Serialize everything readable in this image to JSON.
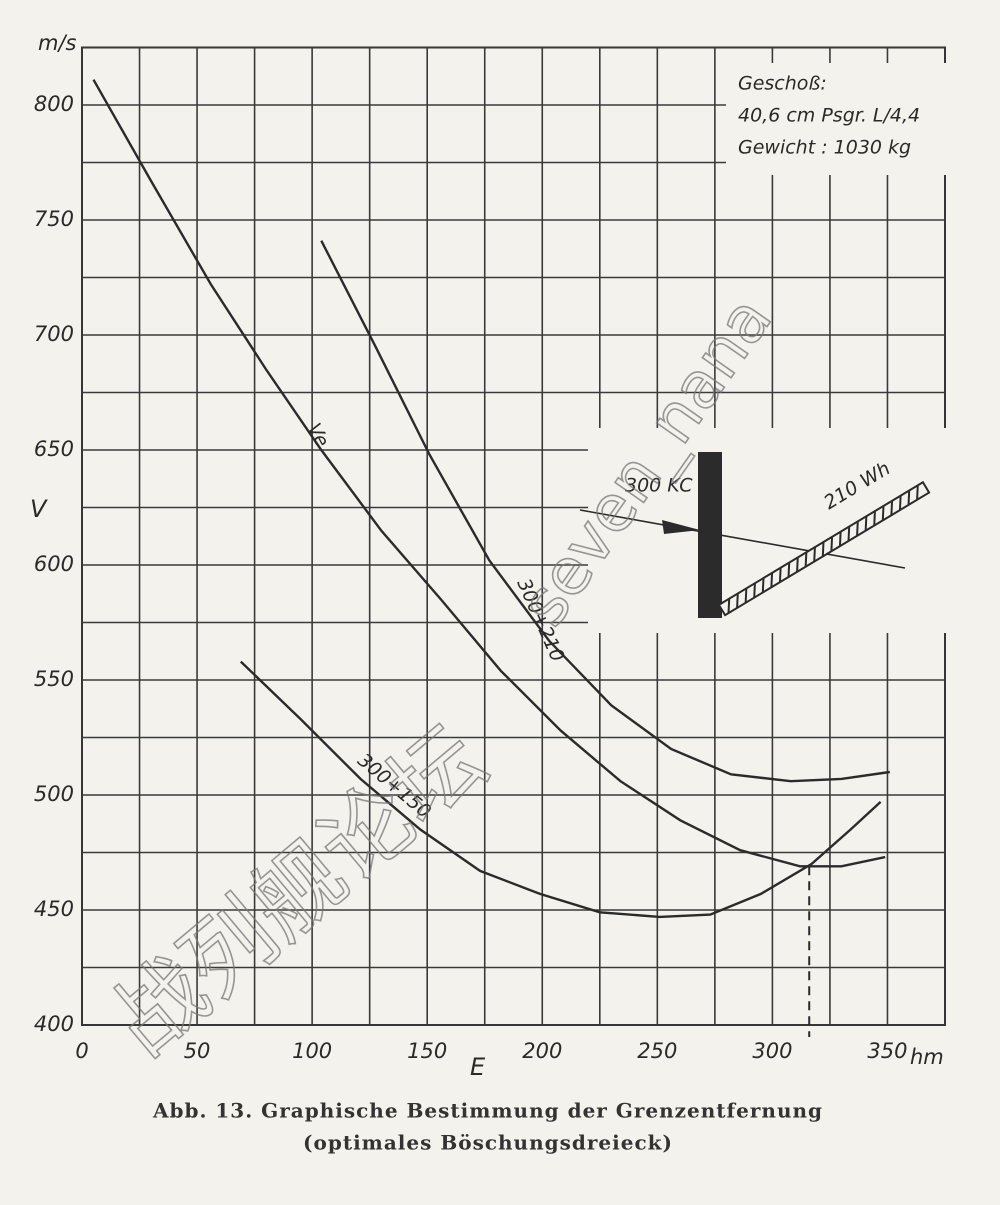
{
  "chart_data": {
    "type": "line",
    "y_unit": "m/s",
    "y_label": "V",
    "x_label": "E",
    "x_unit": "hm",
    "xlim": [
      0,
      375
    ],
    "ylim": [
      400,
      825
    ],
    "xticks": [
      0,
      50,
      100,
      150,
      200,
      250,
      300,
      350
    ],
    "yticks": [
      400,
      450,
      500,
      550,
      600,
      650,
      700,
      750,
      800
    ],
    "minor_xticks": [
      25,
      75,
      125,
      175,
      225,
      275,
      325,
      375
    ],
    "minor_yticks": [
      425,
      475,
      525,
      575,
      625,
      675,
      725,
      775,
      825
    ],
    "grid": true,
    "series": [
      {
        "name": "Ve",
        "color": "#2b2b2b",
        "x": [
          5,
          30,
          56,
          80,
          104,
          130,
          156,
          182,
          208,
          234,
          260,
          286,
          312,
          330,
          349
        ],
        "values": [
          811,
          767,
          722,
          685,
          650,
          615,
          585,
          554,
          528,
          506,
          489,
          476,
          469,
          469,
          473
        ]
      },
      {
        "name": "300+210",
        "color": "#2b2b2b",
        "x": [
          104,
          127,
          151,
          177,
          203,
          230,
          256,
          282,
          308,
          330,
          351
        ],
        "values": [
          741,
          696,
          648,
          602,
          567,
          539,
          520,
          509,
          506,
          507,
          510
        ]
      },
      {
        "name": "300+150",
        "color": "#2b2b2b",
        "x": [
          69,
          95,
          121,
          147,
          173,
          199,
          225,
          251,
          273,
          295,
          317,
          334,
          347
        ],
        "values": [
          558,
          533,
          507,
          485,
          467,
          457,
          449,
          447,
          448,
          457,
          470,
          485,
          497
        ]
      }
    ],
    "marker": {
      "x": 316,
      "y": 469
    },
    "info_box": [
      "Geschoß:",
      "40,6 cm Psgr. L/4,4",
      "Gewicht : 1030 kg"
    ],
    "inset_labels": [
      "300 KC",
      "210 Wh"
    ],
    "caption": [
      "Abb. 13.  Graphische Bestimmung der Grenzentfernung",
      "(optimales Böschungsdreieck)"
    ],
    "watermarks": [
      "seven_nana",
      "战列舰论坛"
    ]
  }
}
